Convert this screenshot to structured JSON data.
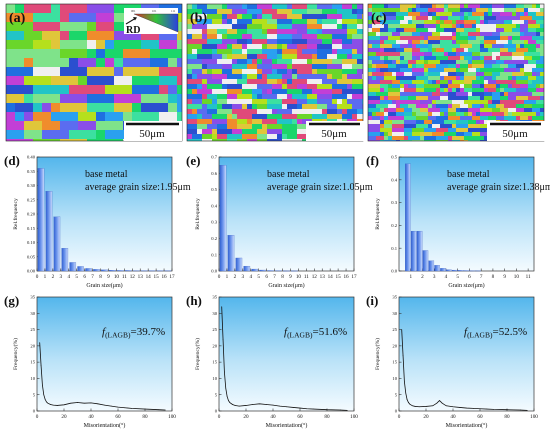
{
  "panels": [
    {
      "label": "(a)",
      "scale_bar": "50μm",
      "legend_label": "RD",
      "legend_ticks": [
        "001",
        "101",
        "111"
      ]
    },
    {
      "label": "(b)",
      "scale_bar": "50μm"
    },
    {
      "label": "(c)",
      "scale_bar": "50μm"
    }
  ],
  "map_colors": [
    "#1f6fe0",
    "#2aa0f0",
    "#21c4c7",
    "#1bd66a",
    "#6ad62a",
    "#b5e01c",
    "#e0c63a",
    "#f08c2c",
    "#e04a7a",
    "#c23fd6",
    "#8a4ee8",
    "#5b6cf0",
    "#3ce0a0",
    "#f0f0f0",
    "#7fe38a",
    "#2b4fcf"
  ],
  "chart_data": [
    {
      "type": "bar",
      "label": "(d)",
      "annotation": [
        "base metal",
        "average grain size:1.95μm"
      ],
      "xlabel": "Grain size(μm)",
      "ylabel": "Rel.frequency",
      "xlim": [
        0,
        17
      ],
      "ylim": [
        0,
        0.4
      ],
      "xticks": [
        0,
        1,
        2,
        3,
        4,
        5,
        6,
        7,
        8,
        9,
        10,
        11,
        12,
        13,
        14,
        15,
        16,
        17
      ],
      "yticks": [
        0.0,
        0.05,
        0.1,
        0.15,
        0.2,
        0.25,
        0.3,
        0.35,
        0.4
      ],
      "ytick_labels": [
        "0.00",
        "0.05",
        "0.10",
        "0.15",
        "0.20",
        "0.25",
        "0.30",
        "0.35",
        "0.40"
      ],
      "bar_width": 0.8,
      "x": [
        0.5,
        1.5,
        2.5,
        3.5,
        4.5,
        5.5,
        6.5,
        7.5,
        8.5,
        9.5,
        10.5,
        11.5,
        12.5,
        13.5,
        14.5,
        15.5,
        16.5
      ],
      "values": [
        0.36,
        0.28,
        0.19,
        0.08,
        0.03,
        0.016,
        0.009,
        0.006,
        0.004,
        0.003,
        0.002,
        0.002,
        0.001,
        0.001,
        0.001,
        0.001,
        0.001
      ]
    },
    {
      "type": "bar",
      "label": "(e)",
      "annotation": [
        "base metal",
        "average grain size:1.05μm"
      ],
      "xlabel": "Grain size(μm)",
      "ylabel": "Rel.frequency",
      "xlim": [
        0,
        17
      ],
      "ylim": [
        0,
        0.7
      ],
      "xticks": [
        0,
        1,
        2,
        3,
        4,
        5,
        6,
        7,
        8,
        9,
        10,
        11,
        12,
        13,
        14,
        15,
        16,
        17
      ],
      "yticks": [
        0.0,
        0.1,
        0.2,
        0.3,
        0.4,
        0.5,
        0.6,
        0.7
      ],
      "ytick_labels": [
        "0.0",
        "0.1",
        "0.2",
        "0.3",
        "0.4",
        "0.5",
        "0.6",
        "0.7"
      ],
      "bar_width": 0.8,
      "x": [
        0.5,
        1.5,
        2.5,
        3.5,
        4.5,
        5.5,
        6.5,
        7.5,
        8.5,
        9.5
      ],
      "values": [
        0.65,
        0.22,
        0.08,
        0.03,
        0.012,
        0.006,
        0.003,
        0.002,
        0.001,
        0.001
      ]
    },
    {
      "type": "bar",
      "label": "(f)",
      "annotation": [
        "base metal",
        "average grain size:1.38μm"
      ],
      "xlabel": "Grain size(μm)",
      "ylabel": "Rel.frequency",
      "xlim": [
        0,
        11.5
      ],
      "ylim": [
        0,
        0.5
      ],
      "xticks": [
        1,
        2,
        3,
        4,
        5,
        6,
        7,
        8,
        9,
        10,
        11
      ],
      "yticks": [
        0.0,
        0.1,
        0.2,
        0.3,
        0.4,
        0.5
      ],
      "ytick_labels": [
        "0.0",
        "0.1",
        "0.2",
        "0.3",
        "0.4",
        "0.5"
      ],
      "bar_width": 0.45,
      "x": [
        0.75,
        1.25,
        1.75,
        2.25,
        2.75,
        3.25,
        3.75,
        4.25,
        4.75,
        5.25,
        5.75,
        6.25,
        6.75
      ],
      "values": [
        0.47,
        0.175,
        0.175,
        0.09,
        0.045,
        0.025,
        0.012,
        0.006,
        0.004,
        0.003,
        0.002,
        0.001,
        0.001
      ]
    },
    {
      "type": "line",
      "label": "(g)",
      "annotation_f": "f",
      "annotation_sub": "(LAGB)",
      "annotation_value": "=39.7%",
      "xlabel": "Misorientation(°)",
      "ylabel": "Frequency(%)",
      "xlim": [
        0,
        100
      ],
      "ylim": [
        0,
        35
      ],
      "xticks": [
        0,
        20,
        40,
        60,
        80,
        100
      ],
      "yticks": [
        0,
        5,
        10,
        15,
        20,
        25,
        30,
        35
      ],
      "x": [
        2,
        3,
        4,
        5,
        6,
        7,
        8,
        10,
        12,
        15,
        20,
        25,
        30,
        35,
        40,
        45,
        50,
        55,
        60,
        65,
        70,
        80,
        90,
        95
      ],
      "y": [
        21,
        14,
        8,
        5,
        3.6,
        2.8,
        2.4,
        2.0,
        1.8,
        1.7,
        1.9,
        2.4,
        2.6,
        2.4,
        2.5,
        2.2,
        1.8,
        1.5,
        1.2,
        1.0,
        0.8,
        0.6,
        0.4,
        0.3
      ]
    },
    {
      "type": "line",
      "label": "(h)",
      "annotation_f": "f",
      "annotation_sub": "(LAGB)",
      "annotation_value": "=51.6%",
      "xlabel": "Misorientation(°)",
      "ylabel": "Frequency(%)",
      "xlim": [
        0,
        100
      ],
      "ylim": [
        0,
        35
      ],
      "xticks": [
        0,
        20,
        40,
        60,
        80,
        100
      ],
      "yticks": [
        0,
        5,
        10,
        15,
        20,
        25,
        30,
        35
      ],
      "x": [
        2,
        3,
        4,
        5,
        6,
        7,
        8,
        10,
        12,
        15,
        20,
        25,
        30,
        35,
        40,
        45,
        50,
        55,
        60,
        65,
        70,
        80,
        90,
        95
      ],
      "y": [
        32,
        22,
        12,
        7,
        4.5,
        3.2,
        2.6,
        2.0,
        1.7,
        1.5,
        1.7,
        2.0,
        2.2,
        2.0,
        1.8,
        1.5,
        1.3,
        1.1,
        0.9,
        0.7,
        0.6,
        0.4,
        0.3,
        0.2
      ]
    },
    {
      "type": "line",
      "label": "(i)",
      "annotation_f": "f",
      "annotation_sub": "(LAGB)",
      "annotation_value": "=52.5%",
      "xlabel": "Misorientation(°)",
      "ylabel": "Frequency(%)",
      "xlim": [
        0,
        100
      ],
      "ylim": [
        0,
        35
      ],
      "xticks": [
        0,
        20,
        40,
        60,
        80,
        100
      ],
      "yticks": [
        0,
        5,
        10,
        15,
        20,
        25,
        30,
        35
      ],
      "x": [
        2,
        3,
        4,
        5,
        6,
        7,
        8,
        10,
        12,
        15,
        20,
        25,
        28,
        30,
        32,
        35,
        40,
        45,
        50,
        55,
        60,
        65,
        70,
        80,
        90,
        95
      ],
      "y": [
        25,
        17,
        9,
        5.5,
        3.5,
        2.6,
        2.1,
        1.6,
        1.4,
        1.3,
        1.4,
        1.6,
        2.4,
        3.2,
        2.4,
        1.6,
        1.3,
        1.1,
        0.9,
        0.8,
        0.7,
        0.6,
        0.5,
        0.4,
        0.3,
        0.2
      ]
    }
  ]
}
